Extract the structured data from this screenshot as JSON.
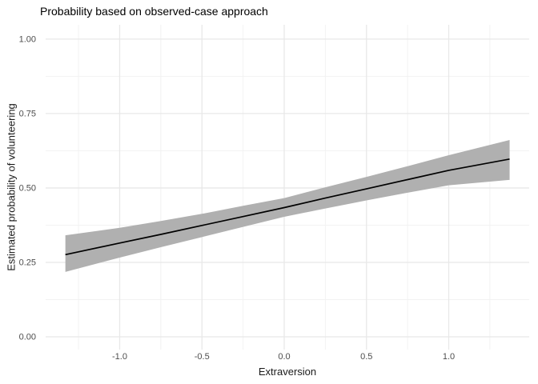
{
  "title": "Probability based on observed-case approach",
  "colors": {
    "background": "#ffffff",
    "grid_major": "#e8e8e8",
    "grid_minor": "#f2f2f2",
    "ribbon": "#b0b0b0",
    "fit_line": "#000000",
    "tick_label": "#4d4d4d",
    "title_text": "#000000"
  },
  "chart_data": {
    "type": "line",
    "title": "Probability based on observed-case approach",
    "xlabel": "Extraversion",
    "ylabel": "Estimated probability of volunteering",
    "legend": "none",
    "grid": "major+minor",
    "xlim": [
      -1.45,
      1.489
    ],
    "ylim": [
      -0.043,
      1.048
    ],
    "x_ticks": {
      "values": [
        -1.0,
        -0.5,
        0.0,
        0.5,
        1.0
      ],
      "labels": [
        "-1.0",
        "-0.5",
        "0.0",
        "0.5",
        "1.0"
      ]
    },
    "y_ticks": {
      "values": [
        0.0,
        0.25,
        0.5,
        0.75,
        1.0
      ],
      "labels": [
        "0.00",
        "0.25",
        "0.50",
        "0.75",
        "1.00"
      ]
    },
    "x_minor": [
      -1.25,
      -0.75,
      -0.25,
      0.25,
      0.75,
      1.25
    ],
    "y_minor": [
      0.125,
      0.375,
      0.625,
      0.875
    ],
    "x": [
      -1.33,
      -1.0,
      -0.75,
      -0.5,
      -0.25,
      0.0,
      0.25,
      0.5,
      0.75,
      1.0,
      1.37
    ],
    "series": [
      {
        "name": "fitted-probability",
        "kind": "line",
        "color": "#000000",
        "values": [
          0.276,
          0.315,
          0.344,
          0.374,
          0.404,
          0.434,
          0.466,
          0.497,
          0.528,
          0.559,
          0.597
        ]
      },
      {
        "name": "confidence-band",
        "kind": "ribbon",
        "color": "#b0b0b0",
        "upper": [
          0.341,
          0.366,
          0.389,
          0.413,
          0.44,
          0.466,
          0.502,
          0.537,
          0.573,
          0.61,
          0.661
        ],
        "lower": [
          0.218,
          0.266,
          0.301,
          0.335,
          0.369,
          0.403,
          0.431,
          0.458,
          0.484,
          0.509,
          0.527
        ]
      }
    ]
  }
}
